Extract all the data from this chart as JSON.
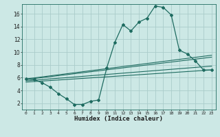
{
  "xlabel": "Humidex (Indice chaleur)",
  "bg_color": "#cce8e5",
  "grid_color": "#aaccca",
  "line_color": "#1e6b60",
  "xlim": [
    -0.5,
    23.5
  ],
  "ylim": [
    1,
    17.5
  ],
  "yticks": [
    2,
    4,
    6,
    8,
    10,
    12,
    14,
    16
  ],
  "xticks": [
    0,
    1,
    2,
    3,
    4,
    5,
    6,
    7,
    8,
    9,
    10,
    11,
    12,
    13,
    14,
    15,
    16,
    17,
    18,
    19,
    20,
    21,
    22,
    23
  ],
  "main_x": [
    0,
    1,
    2,
    3,
    4,
    5,
    6,
    7,
    8,
    9,
    10,
    11,
    12,
    13,
    14,
    15,
    16,
    17,
    18,
    19,
    20,
    21,
    22,
    23
  ],
  "main_y": [
    5.8,
    5.7,
    5.2,
    4.5,
    3.5,
    2.7,
    1.8,
    1.8,
    2.3,
    2.5,
    7.5,
    11.5,
    14.3,
    13.3,
    14.7,
    15.3,
    17.2,
    17.0,
    15.8,
    10.3,
    9.7,
    8.6,
    7.2,
    7.2
  ],
  "ref_lines": [
    {
      "x": [
        0,
        23
      ],
      "y": [
        5.8,
        9.5
      ]
    },
    {
      "x": [
        0,
        23
      ],
      "y": [
        5.7,
        9.2
      ]
    },
    {
      "x": [
        0,
        23
      ],
      "y": [
        5.5,
        7.8
      ]
    },
    {
      "x": [
        0,
        23
      ],
      "y": [
        5.3,
        7.2
      ]
    }
  ]
}
